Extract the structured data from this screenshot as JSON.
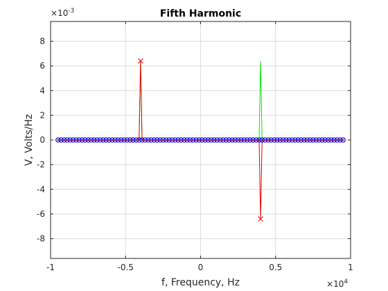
{
  "chart_data": {
    "type": "line",
    "title": "Fifth Harmonic",
    "xlabel": "f, Frequency, Hz",
    "ylabel": "V, Volts/Hz",
    "x_multiplier": "10",
    "x_multiplier_exp": "4",
    "y_multiplier": "10",
    "y_multiplier_exp": "-3",
    "xlim": [
      -1,
      1
    ],
    "ylim": [
      -9.6,
      9.6
    ],
    "xticks": [
      -1,
      -0.5,
      0,
      0.5,
      1
    ],
    "xtick_labels": [
      "-1",
      "-0.5",
      "0",
      "0.5",
      "1"
    ],
    "yticks": [
      -8,
      -6,
      -4,
      -2,
      0,
      2,
      4,
      6,
      8
    ],
    "ytick_labels": [
      "-8",
      "-6",
      "-4",
      "-2",
      "0",
      "2",
      "4",
      "6",
      "8"
    ],
    "grid": true,
    "series": [
      {
        "color": "#00e600",
        "style": "line",
        "x": [
          -0.95,
          -0.41,
          -0.4,
          -0.39,
          0.39,
          0.4,
          0.41,
          0.95
        ],
        "values": [
          0,
          0,
          6.4,
          0,
          0,
          6.4,
          0,
          0
        ]
      },
      {
        "color": "#e60000",
        "style": "line-x-marker",
        "x": [
          -0.95,
          -0.41,
          -0.4,
          -0.39,
          0.39,
          0.4,
          0.41,
          0.95
        ],
        "values": [
          0,
          0,
          6.4,
          0,
          0,
          -6.4,
          0,
          0
        ],
        "marker_x": [
          -0.4,
          0.4
        ],
        "marker_y": [
          6.4,
          -6.4
        ]
      },
      {
        "color": "#0000e6",
        "style": "circle-marker",
        "x_start": -0.95,
        "x_end": 0.95,
        "count": 96,
        "value": 0
      }
    ]
  }
}
